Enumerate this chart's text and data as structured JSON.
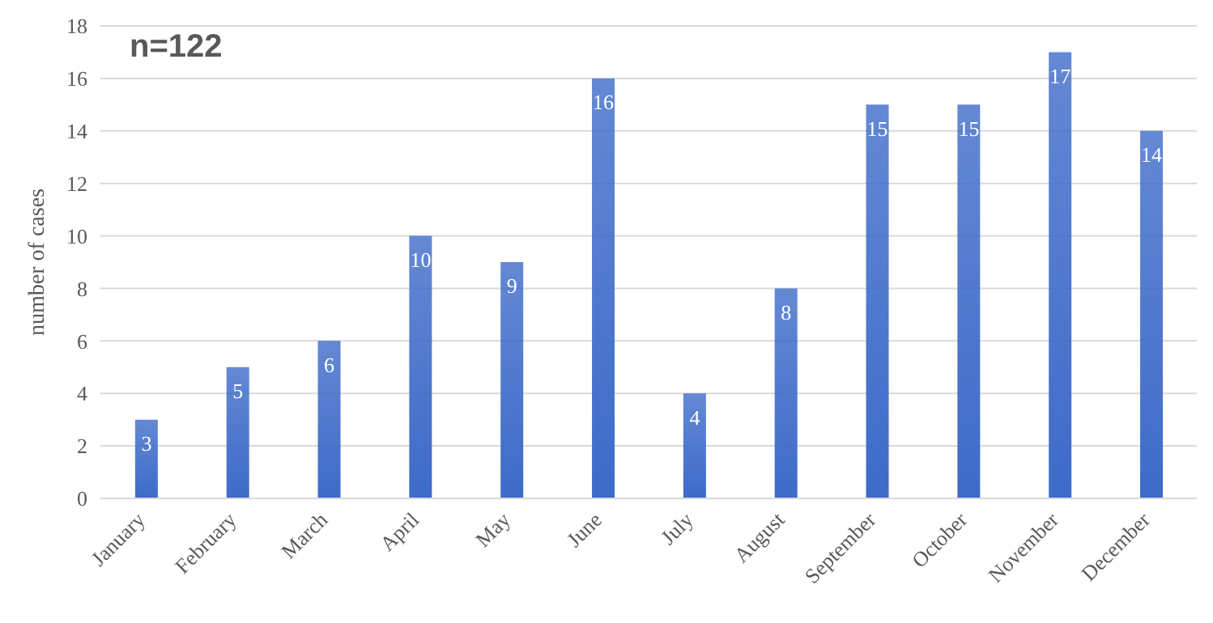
{
  "chart_data": {
    "type": "bar",
    "ylabel": "number of cases",
    "annotations": [
      "n=122"
    ],
    "categories": [
      "January",
      "February",
      "March",
      "April",
      "May",
      "June",
      "July",
      "August",
      "September",
      "October",
      "November",
      "December"
    ],
    "values": [
      3,
      5,
      6,
      10,
      9,
      16,
      4,
      8,
      15,
      15,
      17,
      14
    ],
    "color": "#3d6bc9",
    "ylim": [
      0,
      18
    ],
    "yticks": [
      0,
      2,
      4,
      6,
      8,
      10,
      12,
      14,
      16,
      18
    ],
    "grid": "y",
    "data_labels": true
  }
}
